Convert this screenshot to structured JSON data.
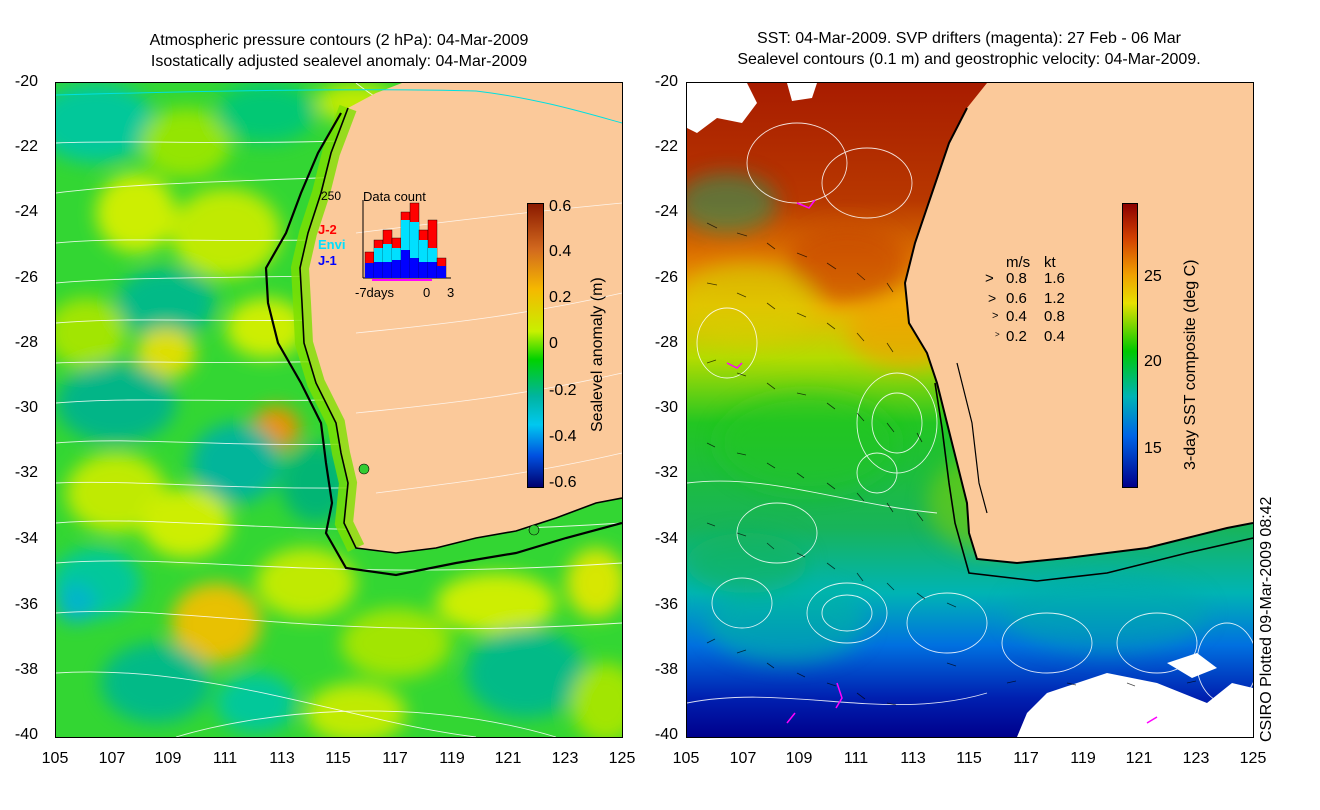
{
  "left_panel": {
    "title_line1": "Atmospheric pressure contours (2 hPa): 04-Mar-2009",
    "title_line2": "Isostatically adjusted sealevel anomaly: 04-Mar-2009",
    "y_ticks": [
      "-20",
      "-22",
      "-24",
      "-26",
      "-28",
      "-30",
      "-32",
      "-34",
      "-36",
      "-38",
      "-40"
    ],
    "x_ticks": [
      "105",
      "107",
      "109",
      "111",
      "113",
      "115",
      "117",
      "119",
      "121",
      "123",
      "125"
    ],
    "colorbar": {
      "label": "Sealevel anomaly (m)",
      "ticks": [
        "0.6",
        "0.4",
        "0.2",
        "0",
        "-0.2",
        "-0.4",
        "-0.6"
      ],
      "colors": [
        "#8b1a00",
        "#d2691e",
        "#f5b800",
        "#c8f000",
        "#00d200",
        "#00b4a0",
        "#00c8f0",
        "#0050e0",
        "#00006e"
      ]
    },
    "inset": {
      "title": "Data count",
      "max_label": "250",
      "legend": [
        {
          "label": "J-2",
          "color": "#ff0000"
        },
        {
          "label": "Envi",
          "color": "#00e0ff"
        },
        {
          "label": "J-1",
          "color": "#0000ff"
        }
      ],
      "x_labels": [
        "-7days",
        "0",
        "3"
      ]
    }
  },
  "right_panel": {
    "title_line1": "SST: 04-Mar-2009. SVP drifters (magenta): 27 Feb - 06 Mar",
    "title_line2": "Sealevel contours (0.1 m) and geostrophic velocity: 04-Mar-2009.",
    "y_ticks": [
      "-20",
      "-22",
      "-24",
      "-26",
      "-28",
      "-30",
      "-32",
      "-34",
      "-36",
      "-38",
      "-40"
    ],
    "x_ticks": [
      "105",
      "107",
      "109",
      "111",
      "113",
      "115",
      "117",
      "119",
      "121",
      "123",
      "125"
    ],
    "colorbar": {
      "label": "3-day SST composite (deg C)",
      "ticks": [
        "25",
        "20",
        "15"
      ],
      "colors": [
        "#8b0000",
        "#d24000",
        "#f0a000",
        "#e8e000",
        "#00c800",
        "#00b4b4",
        "#0064e6",
        "#00008c"
      ]
    },
    "velocity_legend": {
      "header_ms": "m/s",
      "header_kt": "kt",
      "rows": [
        {
          "ms": "0.8",
          "kt": "1.6"
        },
        {
          "ms": "0.6",
          "kt": "1.2"
        },
        {
          "ms": "0.4",
          "kt": "0.8"
        },
        {
          "ms": "0.2",
          "kt": "0.4"
        }
      ]
    }
  },
  "credit": "CSIRO Plotted 09-Mar-2009 08:42",
  "colors": {
    "land": "#fbc99a",
    "coast": "#000000",
    "contour": "#ffffff",
    "drifter": "#ff00ff"
  }
}
